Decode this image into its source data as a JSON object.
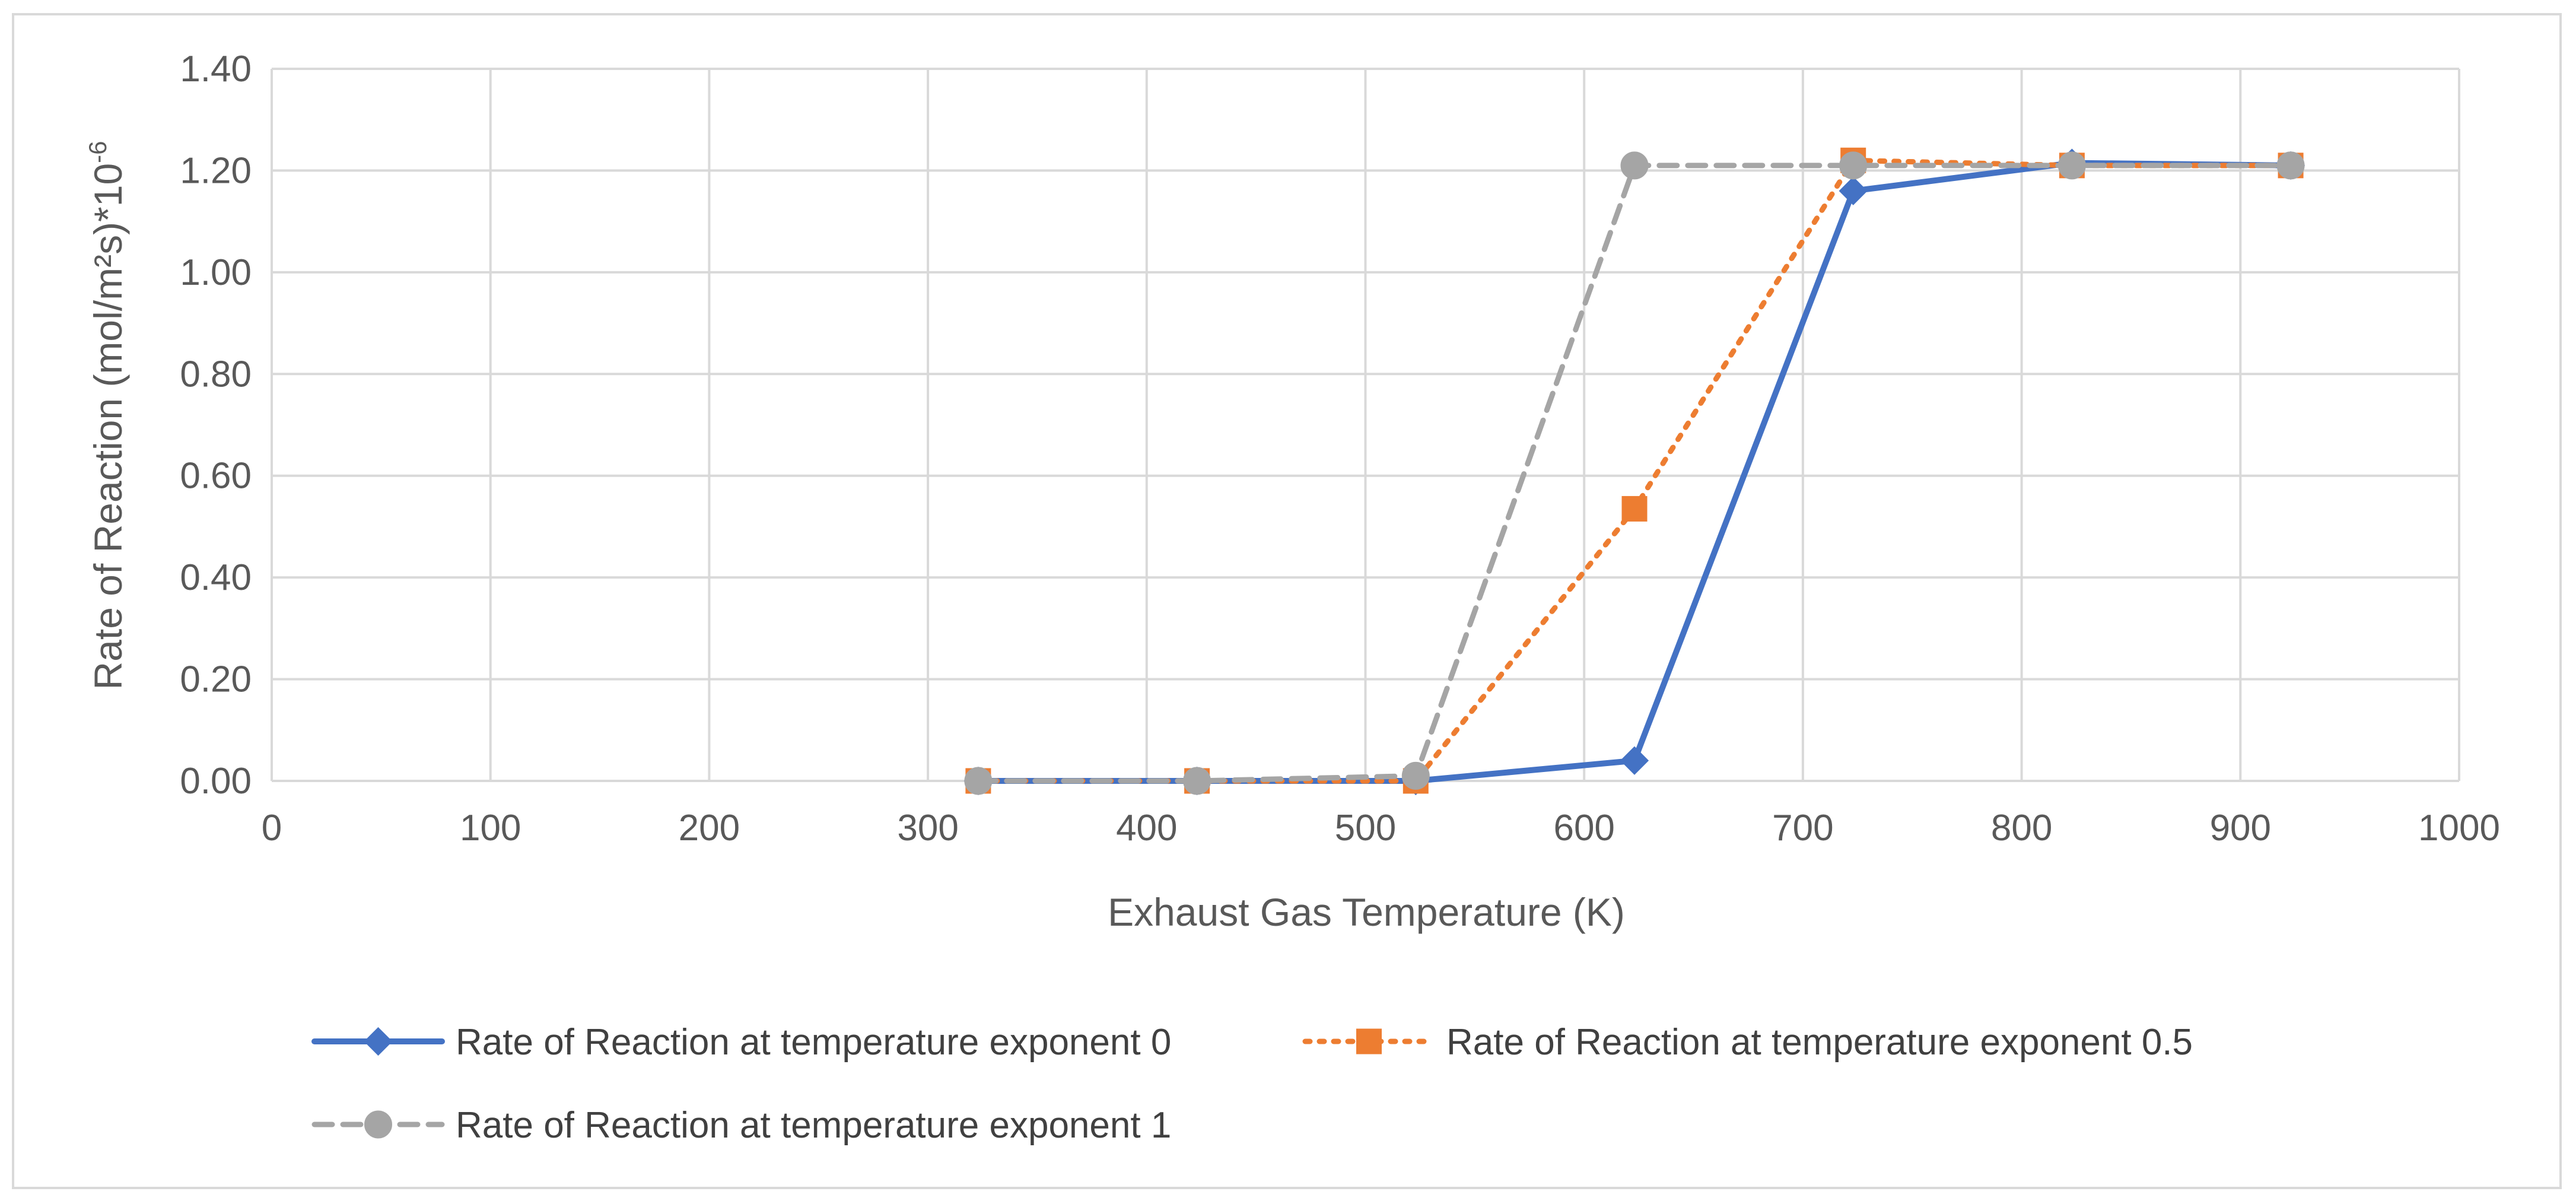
{
  "chart_data": {
    "type": "line",
    "title": "",
    "xlabel": "Exhaust Gas Temperature (K)",
    "ylabel": "Rate of Reaction (mol/m²s)*10",
    "ylabel_superscript": "-6",
    "xlim": [
      0,
      1000
    ],
    "ylim": [
      0,
      1.4
    ],
    "xticks": [
      0,
      100,
      200,
      300,
      400,
      500,
      600,
      700,
      800,
      900,
      1000
    ],
    "yticks": [
      0,
      0.2,
      0.4,
      0.6,
      0.8,
      1.0,
      1.2,
      1.4
    ],
    "xtick_labels": [
      "0",
      "100",
      "200",
      "300",
      "400",
      "500",
      "600",
      "700",
      "800",
      "900",
      "1000"
    ],
    "ytick_labels": [
      "0.00",
      "0.20",
      "0.40",
      "0.60",
      "0.80",
      "1.00",
      "1.20",
      "1.40"
    ],
    "grid": true,
    "legend_position": "bottom",
    "series": [
      {
        "name": "Rate of Reaction at temperature exponent 0",
        "color": "#4472c4",
        "line_style": "solid",
        "marker": "diamond",
        "x": [
          323,
          423,
          523,
          623,
          723,
          823,
          923
        ],
        "y": [
          0.0,
          0.0,
          0.0,
          0.04,
          1.16,
          1.215,
          1.21
        ]
      },
      {
        "name": "Rate of Reaction at temperature exponent 0.5",
        "color": "#ed7d31",
        "line_style": "dotted",
        "marker": "square",
        "x": [
          323,
          423,
          523,
          623,
          723,
          823,
          923
        ],
        "y": [
          0.0,
          0.0,
          0.0,
          0.535,
          1.22,
          1.21,
          1.21
        ]
      },
      {
        "name": "Rate of Reaction at temperature exponent 1",
        "color": "#a5a5a5",
        "line_style": "dashed",
        "marker": "circle",
        "x": [
          323,
          423,
          523,
          623,
          723,
          823,
          923
        ],
        "y": [
          0.0,
          0.0,
          0.01,
          1.21,
          1.21,
          1.21,
          1.21
        ]
      }
    ]
  }
}
